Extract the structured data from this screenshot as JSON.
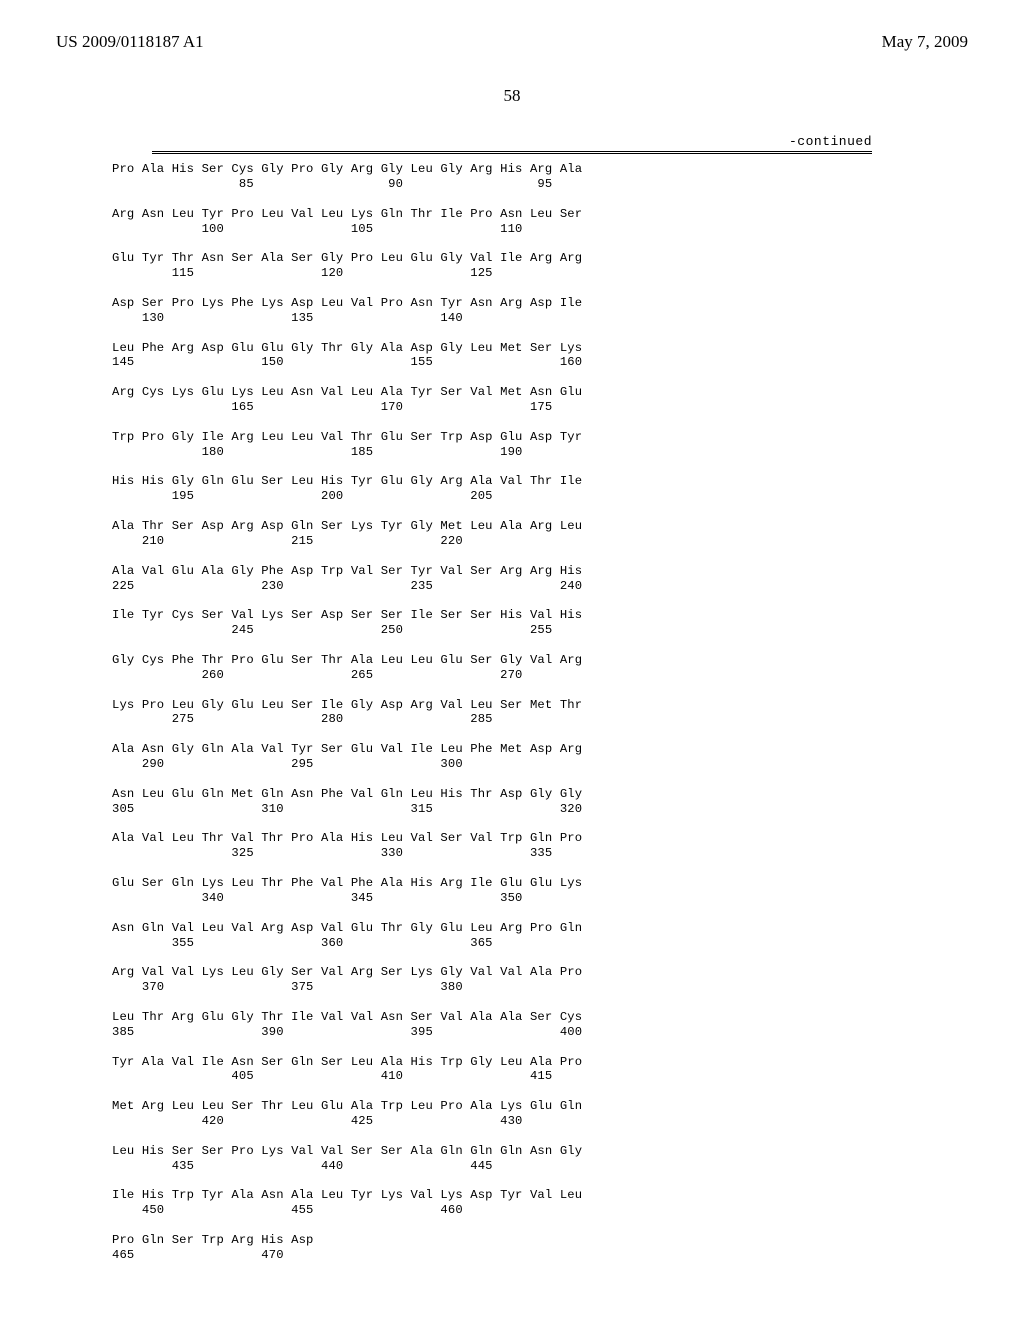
{
  "header": {
    "pub_number": "US 2009/0118187 A1",
    "pub_date": "May 7, 2009"
  },
  "page_number": "58",
  "continued_label": "-continued",
  "sequence_block": "Pro Ala His Ser Cys Gly Pro Gly Arg Gly Leu Gly Arg His Arg Ala\n                 85                  90                  95\n\nArg Asn Leu Tyr Pro Leu Val Leu Lys Gln Thr Ile Pro Asn Leu Ser\n            100                 105                 110\n\nGlu Tyr Thr Asn Ser Ala Ser Gly Pro Leu Glu Gly Val Ile Arg Arg\n        115                 120                 125\n\nAsp Ser Pro Lys Phe Lys Asp Leu Val Pro Asn Tyr Asn Arg Asp Ile\n    130                 135                 140\n\nLeu Phe Arg Asp Glu Glu Gly Thr Gly Ala Asp Gly Leu Met Ser Lys\n145                 150                 155                 160\n\nArg Cys Lys Glu Lys Leu Asn Val Leu Ala Tyr Ser Val Met Asn Glu\n                165                 170                 175\n\nTrp Pro Gly Ile Arg Leu Leu Val Thr Glu Ser Trp Asp Glu Asp Tyr\n            180                 185                 190\n\nHis His Gly Gln Glu Ser Leu His Tyr Glu Gly Arg Ala Val Thr Ile\n        195                 200                 205\n\nAla Thr Ser Asp Arg Asp Gln Ser Lys Tyr Gly Met Leu Ala Arg Leu\n    210                 215                 220\n\nAla Val Glu Ala Gly Phe Asp Trp Val Ser Tyr Val Ser Arg Arg His\n225                 230                 235                 240\n\nIle Tyr Cys Ser Val Lys Ser Asp Ser Ser Ile Ser Ser His Val His\n                245                 250                 255\n\nGly Cys Phe Thr Pro Glu Ser Thr Ala Leu Leu Glu Ser Gly Val Arg\n            260                 265                 270\n\nLys Pro Leu Gly Glu Leu Ser Ile Gly Asp Arg Val Leu Ser Met Thr\n        275                 280                 285\n\nAla Asn Gly Gln Ala Val Tyr Ser Glu Val Ile Leu Phe Met Asp Arg\n    290                 295                 300\n\nAsn Leu Glu Gln Met Gln Asn Phe Val Gln Leu His Thr Asp Gly Gly\n305                 310                 315                 320\n\nAla Val Leu Thr Val Thr Pro Ala His Leu Val Ser Val Trp Gln Pro\n                325                 330                 335\n\nGlu Ser Gln Lys Leu Thr Phe Val Phe Ala His Arg Ile Glu Glu Lys\n            340                 345                 350\n\nAsn Gln Val Leu Val Arg Asp Val Glu Thr Gly Glu Leu Arg Pro Gln\n        355                 360                 365\n\nArg Val Val Lys Leu Gly Ser Val Arg Ser Lys Gly Val Val Ala Pro\n    370                 375                 380\n\nLeu Thr Arg Glu Gly Thr Ile Val Val Asn Ser Val Ala Ala Ser Cys\n385                 390                 395                 400\n\nTyr Ala Val Ile Asn Ser Gln Ser Leu Ala His Trp Gly Leu Ala Pro\n                405                 410                 415\n\nMet Arg Leu Leu Ser Thr Leu Glu Ala Trp Leu Pro Ala Lys Glu Gln\n            420                 425                 430\n\nLeu His Ser Ser Pro Lys Val Val Ser Ser Ala Gln Gln Gln Asn Gly\n        435                 440                 445\n\nIle His Trp Tyr Ala Asn Ala Leu Tyr Lys Val Lys Asp Tyr Val Leu\n    450                 455                 460\n\nPro Gln Ser Trp Arg His Asp\n465                 470"
}
